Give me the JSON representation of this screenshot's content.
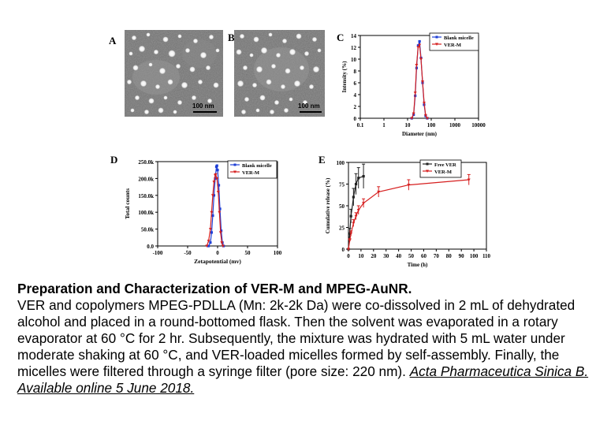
{
  "panels": {
    "a_letter": "A",
    "b_letter": "B",
    "c_letter": "C",
    "d_letter": "D",
    "e_letter": "E",
    "scale_a": "100 nm",
    "scale_b": "100 nm"
  },
  "chart_data": [
    {
      "panel": "C",
      "type": "line",
      "xlabel": "Diameter (nm)",
      "ylabel": "Intensity (%)",
      "x_scale": "log",
      "xlim": [
        0.1,
        10000
      ],
      "ylim": [
        0,
        14
      ],
      "x_ticks": [
        "0.1",
        "1",
        "10",
        "100",
        "1000",
        "10000"
      ],
      "y_ticks": [
        "0",
        "2",
        "4",
        "6",
        "8",
        "10",
        "12",
        "14"
      ],
      "legend_position": "top-right",
      "series": [
        {
          "name": "Blank micelle",
          "color": "#1f3fd6",
          "x": [
            15,
            18,
            21,
            24,
            28,
            32,
            37,
            43,
            50,
            58,
            68
          ],
          "y": [
            0,
            0.6,
            3.8,
            8.5,
            12.3,
            13.0,
            10.2,
            6.0,
            2.3,
            0.4,
            0
          ]
        },
        {
          "name": "VER-M",
          "color": "#d61f1f",
          "x": [
            15,
            18,
            21,
            24,
            28,
            32,
            37,
            43,
            50,
            58,
            68
          ],
          "y": [
            0,
            0.8,
            4.3,
            9.0,
            12.0,
            12.4,
            10.0,
            6.2,
            2.6,
            0.5,
            0
          ]
        }
      ]
    },
    {
      "panel": "D",
      "type": "line",
      "xlabel": "Zetapotential (mv)",
      "ylabel": "Total counts",
      "xlim": [
        -100,
        100
      ],
      "ylim": [
        0,
        250000
      ],
      "x_ticks": [
        "-100",
        "-50",
        "0",
        "50",
        "100"
      ],
      "y_ticks": [
        "0.0",
        "50.0k",
        "100.0k",
        "150.0k",
        "200.0k",
        "250.0k"
      ],
      "legend_position": "top-right",
      "series": [
        {
          "name": "Blank micelle",
          "color": "#1f3fd6",
          "x": [
            -15,
            -12,
            -10,
            -8,
            -6,
            -4,
            -2,
            -1,
            0,
            2,
            4,
            6,
            8,
            10
          ],
          "y": [
            0,
            10000,
            40000,
            90000,
            150000,
            200000,
            235000,
            238000,
            225000,
            180000,
            110000,
            45000,
            10000,
            0
          ]
        },
        {
          "name": "VER-M",
          "color": "#d61f1f",
          "x": [
            -18,
            -15,
            -12,
            -10,
            -8,
            -6,
            -4,
            -3,
            -1,
            1,
            3,
            5,
            7,
            9
          ],
          "y": [
            0,
            15000,
            50000,
            100000,
            150000,
            190000,
            210000,
            212000,
            200000,
            160000,
            100000,
            40000,
            10000,
            0
          ]
        }
      ]
    },
    {
      "panel": "E",
      "type": "line",
      "xlabel": "Time (h)",
      "ylabel": "Cumulative release (%)",
      "xlim": [
        0,
        110
      ],
      "ylim": [
        0,
        100
      ],
      "x_ticks": [
        "0",
        "10",
        "20",
        "30",
        "40",
        "50",
        "60",
        "70",
        "80",
        "90",
        "100",
        "110"
      ],
      "y_ticks": [
        "0",
        "25",
        "50",
        "75",
        "100"
      ],
      "legend_position": "top-right",
      "series": [
        {
          "name": "Free VER",
          "color": "#222222",
          "x": [
            0,
            1,
            2,
            4,
            6,
            8,
            12
          ],
          "y": [
            0,
            18,
            38,
            60,
            75,
            82,
            84
          ],
          "err": [
            0,
            6,
            8,
            10,
            12,
            12,
            14
          ]
        },
        {
          "name": "VER-M",
          "color": "#d61f1f",
          "x": [
            0,
            1,
            2,
            4,
            6,
            8,
            12,
            24,
            48,
            96
          ],
          "y": [
            0,
            10,
            18,
            30,
            38,
            45,
            53,
            66,
            74,
            80
          ],
          "err": [
            0,
            2,
            3,
            4,
            4,
            5,
            5,
            6,
            6,
            6
          ]
        }
      ]
    }
  ],
  "caption": {
    "title": "Preparation and Characterization of VER-M and MPEG-AuNR.",
    "body": "VER and copolymers MPEG-PDLLA (Mn: 2k-2k Da) were co-dissolved in 2 mL of dehydrated alcohol and placed in a round-bottomed flask. Then the solvent was evaporated in a rotary evaporator at 60 °C for 2 hr. Subsequently, the mixture was hydrated with 5 mL water under moderate shaking at 60 °C, and VER-loaded micelles formed by self-assembly. Finally, the micelles were filtered through a syringe filter (pore size: 220 nm).",
    "citation": "Acta Pharmaceutica Sinica B. Available online 5 June 2018."
  }
}
